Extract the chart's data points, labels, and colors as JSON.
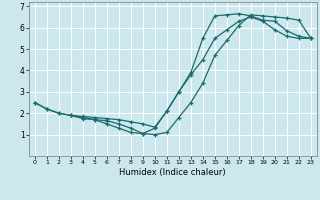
{
  "xlabel": "Humidex (Indice chaleur)",
  "bg_color": "#cce8ee",
  "grid_color": "#ffffff",
  "line_color": "#1a6b6b",
  "xlim": [
    -0.5,
    23.5
  ],
  "ylim": [
    0,
    7.2
  ],
  "xticks": [
    0,
    1,
    2,
    3,
    4,
    5,
    6,
    7,
    8,
    9,
    10,
    11,
    12,
    13,
    14,
    15,
    16,
    17,
    18,
    19,
    20,
    21,
    22,
    23
  ],
  "yticks": [
    1,
    2,
    3,
    4,
    5,
    6,
    7
  ],
  "line1_x": [
    0,
    1,
    2,
    3,
    4,
    5,
    6,
    7,
    8,
    9,
    10,
    11,
    12,
    13,
    14,
    15,
    16,
    17,
    18,
    19,
    20,
    21,
    22,
    23
  ],
  "line1_y": [
    2.5,
    2.2,
    2.0,
    1.9,
    1.8,
    1.7,
    1.5,
    1.3,
    1.1,
    1.05,
    1.3,
    2.1,
    3.0,
    3.8,
    4.5,
    5.5,
    5.9,
    6.3,
    6.5,
    6.3,
    5.9,
    5.6,
    5.5,
    5.5
  ],
  "line2_x": [
    0,
    1,
    2,
    3,
    4,
    5,
    6,
    7,
    8,
    9,
    10,
    11,
    12,
    13,
    14,
    15,
    16,
    17,
    18,
    19,
    20,
    21,
    22,
    23
  ],
  "line2_y": [
    2.5,
    2.2,
    2.0,
    1.9,
    1.85,
    1.8,
    1.75,
    1.7,
    1.6,
    1.5,
    1.35,
    2.1,
    3.0,
    3.9,
    5.5,
    6.55,
    6.6,
    6.65,
    6.55,
    6.35,
    6.3,
    5.85,
    5.6,
    5.5
  ],
  "line3_x": [
    3,
    4,
    5,
    6,
    7,
    8,
    9,
    10,
    11,
    12,
    13,
    14,
    15,
    16,
    17,
    18,
    19,
    20,
    21,
    22,
    23
  ],
  "line3_y": [
    1.9,
    1.75,
    1.7,
    1.65,
    1.5,
    1.3,
    1.05,
    1.0,
    1.1,
    1.8,
    2.5,
    3.4,
    4.7,
    5.4,
    6.1,
    6.6,
    6.55,
    6.5,
    6.45,
    6.35,
    5.5
  ]
}
